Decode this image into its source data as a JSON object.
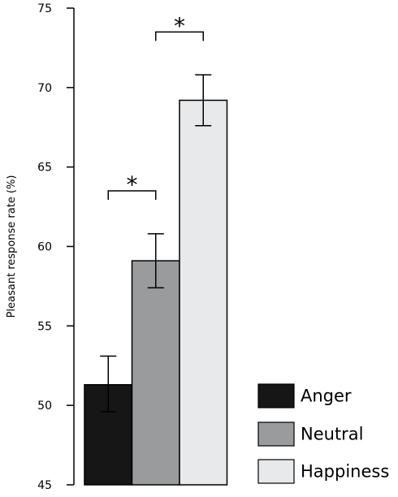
{
  "chart_data": {
    "type": "bar",
    "title": "",
    "xlabel": "",
    "ylabel": "Pleasant response rate (%)",
    "ylim": [
      45,
      75
    ],
    "yticks": [
      45,
      50,
      55,
      60,
      65,
      70,
      75
    ],
    "categories": [
      "Anger",
      "Neutral",
      "Happiness"
    ],
    "values": [
      51.3,
      59.1,
      69.2
    ],
    "error_low": [
      49.6,
      57.4,
      67.6
    ],
    "error_high": [
      53.1,
      60.8,
      70.8
    ],
    "colors": [
      "#161616",
      "#9a9b9d",
      "#e8e9ea"
    ],
    "significance": [
      {
        "from": "Anger",
        "to": "Neutral",
        "label": "*",
        "level": 63.5
      },
      {
        "from": "Neutral",
        "to": "Happiness",
        "label": "*",
        "level": 73.5
      }
    ],
    "legend": {
      "position": "bottom-right",
      "entries": [
        "Anger",
        "Neutral",
        "Happiness"
      ]
    },
    "grid": false
  }
}
